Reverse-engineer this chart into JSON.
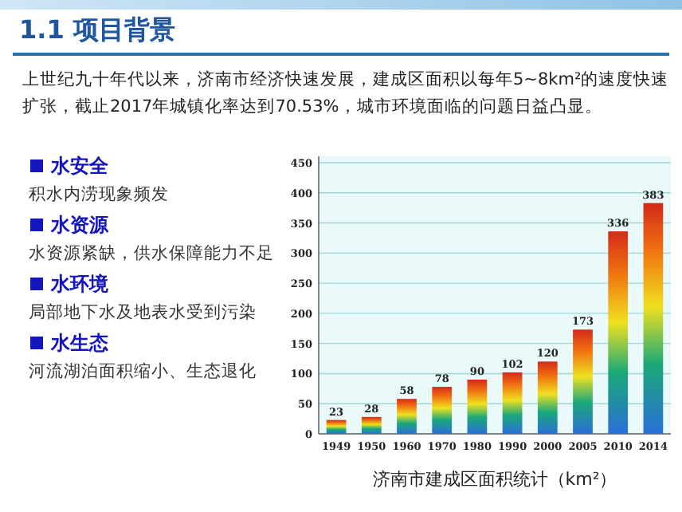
{
  "chart_data": {
    "type": "bar",
    "title": "济南市建成区面积统计（km²）",
    "categories": [
      "1949",
      "1950",
      "1960",
      "1970",
      "1980",
      "1990",
      "2000",
      "2005",
      "2010",
      "2014"
    ],
    "values": [
      23,
      28,
      58,
      78,
      90,
      102,
      120,
      173,
      336,
      383
    ],
    "color": "#d42a1a",
    "ylim": [
      0,
      450
    ],
    "yticks": [
      0,
      50,
      100,
      150,
      200,
      250,
      300,
      350,
      400,
      450
    ],
    "grid": "y",
    "data_labels": true,
    "annotations": [
      "1.1 项目背景",
      "上世纪九十年代以来，济南市经济快速发展，建成区面积以每年5~8km²的速度快速扩张，截止2017年城镇化率达到70.53%，城市环境面临的问题日益凸显。",
      "水安全",
      "积水内涝现象频发",
      "水资源",
      "水资源紧缺，供水保障能力不足",
      "水环境",
      "局部地下水及地表水受到污染",
      "水生态",
      "河流湖泊面积缩小、生态退化"
    ]
  }
}
